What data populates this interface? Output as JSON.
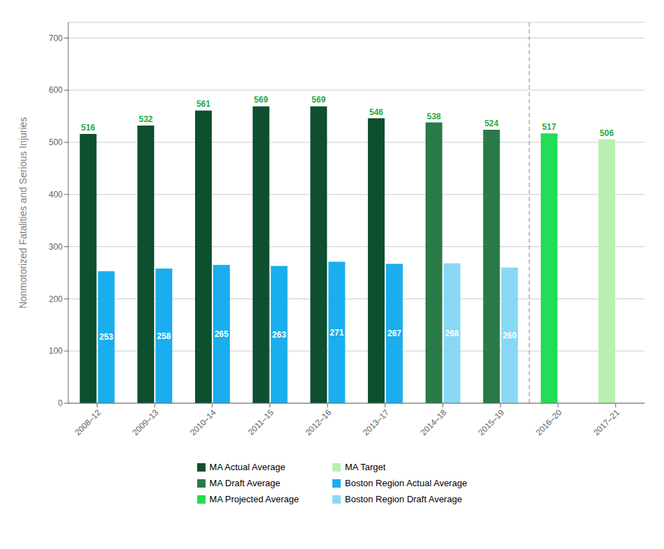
{
  "chart_data": {
    "type": "bar",
    "categories": [
      "2008–12",
      "2009–13",
      "2010–14",
      "2011–15",
      "2012–16",
      "2013–17",
      "2014–18",
      "2015–19",
      "2016–20",
      "2017–21"
    ],
    "series": [
      {
        "colors": [
          "#0d4f2e",
          "#0d4f2e",
          "#0d4f2e",
          "#0d4f2e",
          "#0d4f2e",
          "#0d4f2e",
          "#2a7a48",
          "#2a7a48",
          "#22dd55",
          "#b8f0b0"
        ],
        "values": [
          516,
          532,
          561,
          569,
          569,
          546,
          538,
          524,
          517,
          506
        ],
        "data_labels": true,
        "label_color": "#22aa44"
      },
      {
        "colors": [
          "#1aaeee",
          "#1aaeee",
          "#1aaeee",
          "#1aaeee",
          "#1aaeee",
          "#1aaeee",
          "#88d8f5",
          "#88d8f5",
          null,
          null
        ],
        "values": [
          253,
          258,
          265,
          263,
          271,
          267,
          268,
          260,
          null,
          null
        ],
        "data_labels": true,
        "label_color": "#ffffff"
      }
    ],
    "ylabel": "Nonmotorized Fatalities and Serious Injuries",
    "ylim": [
      0,
      730
    ],
    "yticks": [
      0,
      100,
      200,
      300,
      400,
      500,
      600,
      700
    ],
    "grid": true,
    "legend": "bottom",
    "legend_items": [
      {
        "label": "MA Actual Average",
        "color": "#0d4f2e"
      },
      {
        "label": "MA Draft Average",
        "color": "#2a7a48"
      },
      {
        "label": "MA Projected Average",
        "color": "#22dd55"
      },
      {
        "label": "MA Target",
        "color": "#b8f0b0"
      },
      {
        "label": "Boston Region Actual Average",
        "color": "#1aaeee"
      },
      {
        "label": "Boston Region Draft Average",
        "color": "#88d8f5"
      }
    ]
  }
}
